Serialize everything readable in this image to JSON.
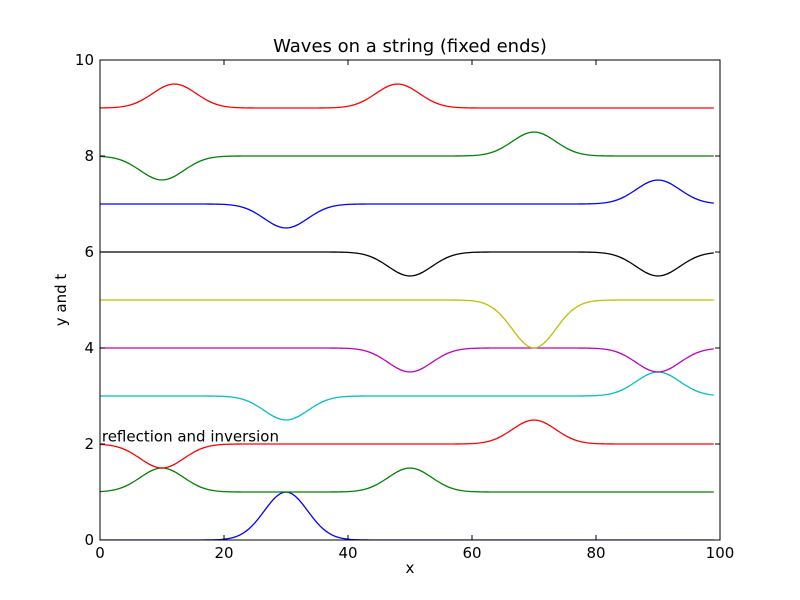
{
  "chart_data": {
    "type": "line",
    "title": "Waves on a string (fixed ends)",
    "xlabel": "x",
    "ylabel": "y and t",
    "xlim": [
      0,
      100
    ],
    "ylim": [
      0,
      10
    ],
    "xticks": [
      "0",
      "20",
      "40",
      "60",
      "80",
      "100"
    ],
    "yticks": [
      "0",
      "2",
      "4",
      "6",
      "8",
      "10"
    ],
    "grid": false,
    "annotation": {
      "text": "reflection and inversion",
      "x": 0.3,
      "y": 2.05
    },
    "series": [
      {
        "color": "#0000ff",
        "baseline": 0,
        "pulses": [
          {
            "center": 30,
            "amplitude": 1.0
          }
        ]
      },
      {
        "color": "#008000",
        "baseline": 1,
        "pulses": [
          {
            "center": 10,
            "amplitude": 0.5
          },
          {
            "center": 50,
            "amplitude": 0.5
          }
        ]
      },
      {
        "color": "#ff0000",
        "baseline": 2,
        "pulses": [
          {
            "center": 10,
            "amplitude": -0.5
          },
          {
            "center": 70,
            "amplitude": 0.5
          }
        ]
      },
      {
        "color": "#00bfbf",
        "baseline": 3,
        "pulses": [
          {
            "center": 30,
            "amplitude": -0.5
          },
          {
            "center": 90,
            "amplitude": 0.5
          }
        ]
      },
      {
        "color": "#bf00bf",
        "baseline": 4,
        "pulses": [
          {
            "center": 50,
            "amplitude": -0.5
          },
          {
            "center": 90,
            "amplitude": -0.5
          }
        ]
      },
      {
        "color": "#bfbf00",
        "baseline": 5,
        "pulses": [
          {
            "center": 70,
            "amplitude": -1.0
          }
        ]
      },
      {
        "color": "#000000",
        "baseline": 6,
        "pulses": [
          {
            "center": 50,
            "amplitude": -0.5
          },
          {
            "center": 90,
            "amplitude": -0.5
          }
        ]
      },
      {
        "color": "#0000ff",
        "baseline": 7,
        "pulses": [
          {
            "center": 30,
            "amplitude": -0.5
          },
          {
            "center": 90,
            "amplitude": 0.5
          }
        ]
      },
      {
        "color": "#008000",
        "baseline": 8,
        "pulses": [
          {
            "center": 10,
            "amplitude": -0.5
          },
          {
            "center": 70,
            "amplitude": 0.5
          }
        ]
      },
      {
        "color": "#ff0000",
        "baseline": 9,
        "pulses": [
          {
            "center": 12,
            "amplitude": 0.5
          },
          {
            "center": 48,
            "amplitude": 0.5
          }
        ]
      }
    ]
  }
}
